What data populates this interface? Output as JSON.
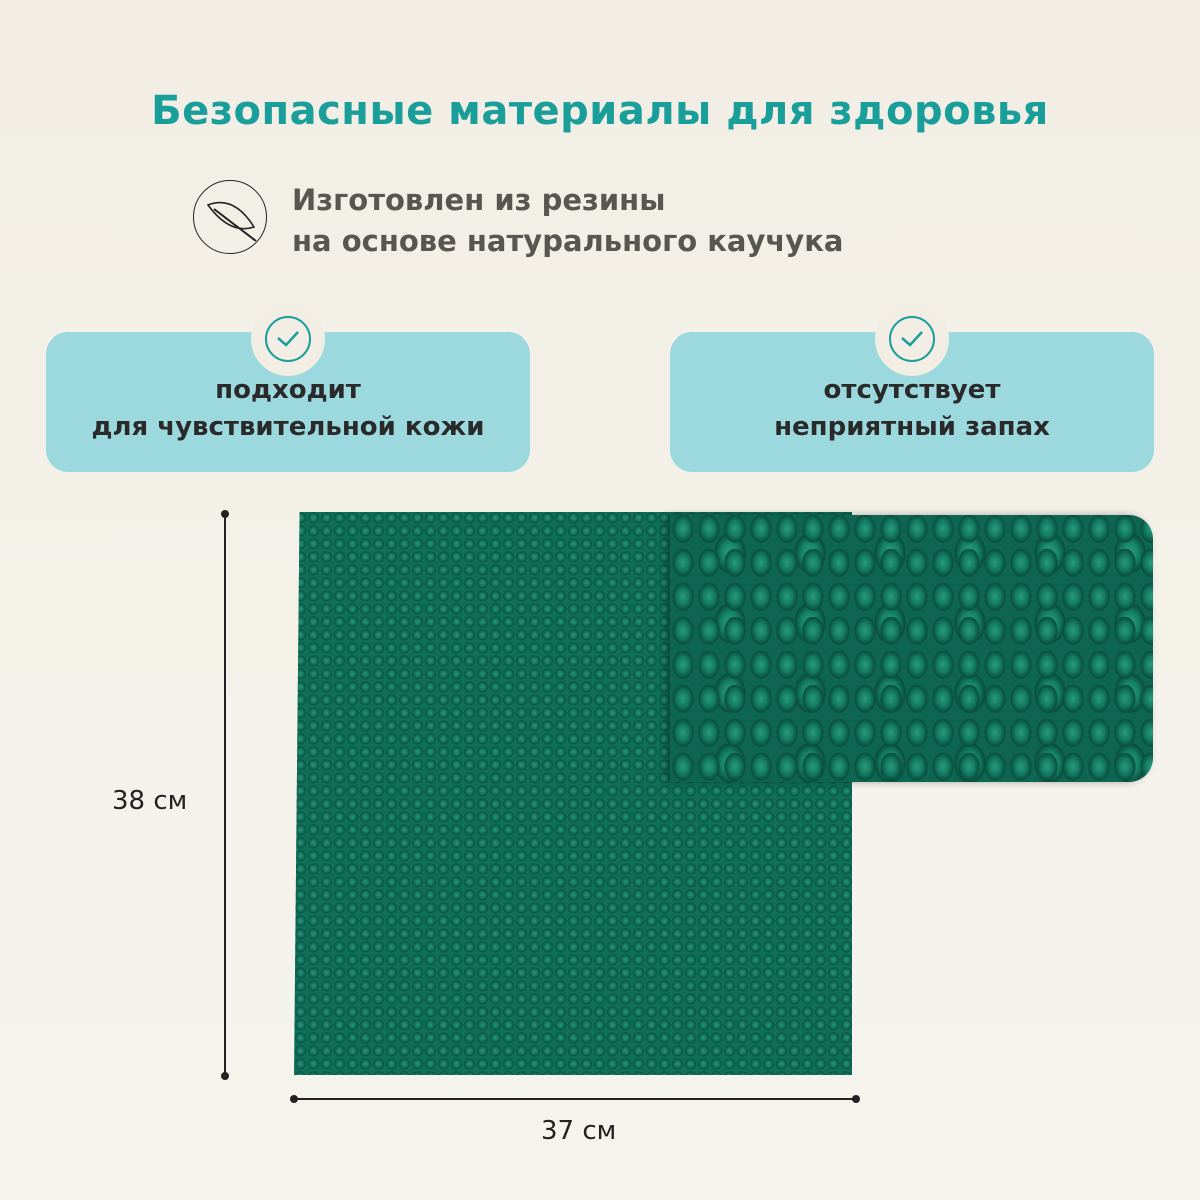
{
  "title": "Безопасные материалы для здоровья",
  "material": {
    "icon": "leaf-icon",
    "line1": "Изготовлен из резины",
    "line2": "на основе натурального каучука"
  },
  "features": [
    {
      "icon": "check-circle-icon",
      "line1": "подходит",
      "line2": "для чувствительной кожи"
    },
    {
      "icon": "check-circle-icon",
      "line1": "отсутствует",
      "line2": "неприятный запах"
    }
  ],
  "dimensions": {
    "height": "38 см",
    "width": "37 см"
  },
  "colors": {
    "accent": "#1a9e9a",
    "card": "#9cd9de",
    "mat": "#0f6f58"
  }
}
